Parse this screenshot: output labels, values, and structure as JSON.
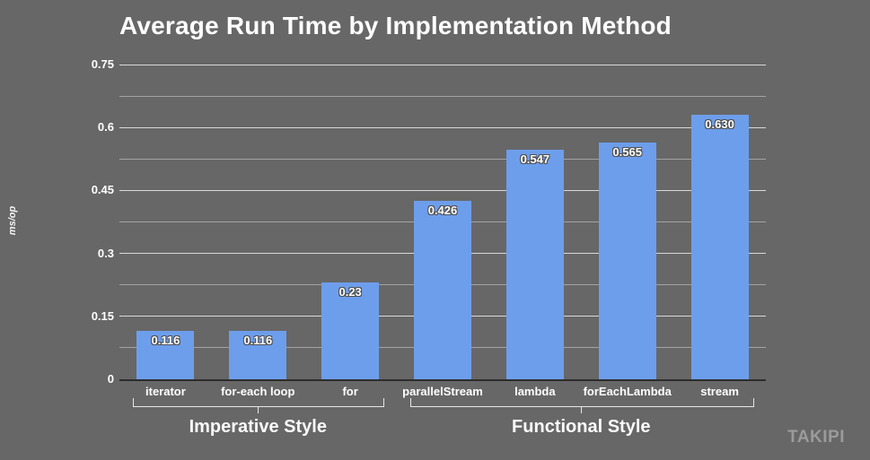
{
  "slide": {
    "background_color": "#676767",
    "logo": "TAKIPI",
    "logo_color": "#9b9b9b"
  },
  "chart_data": {
    "type": "bar",
    "title": "Average Run Time by Implementation Method",
    "xlabel": "",
    "ylabel": "ms/op",
    "categories": [
      "iterator",
      "for-each loop",
      "for",
      "parallelStream",
      "lambda",
      "forEachLambda",
      "stream"
    ],
    "values": [
      0.116,
      0.116,
      0.23,
      0.426,
      0.547,
      0.565,
      0.63
    ],
    "value_labels": [
      "0.116",
      "0.116",
      "0.23",
      "0.426",
      "0.547",
      "0.565",
      "0.630"
    ],
    "ylim": [
      0,
      0.75
    ],
    "yticks": [
      "0",
      "0.15",
      "0.3",
      "0.45",
      "0.6",
      "0.75"
    ],
    "ytick_step_major": 0.15,
    "ytick_step_minor": 0.075,
    "grid": true,
    "legend": "none",
    "bar_color": "#6d9eeb",
    "groups": [
      {
        "label": "Imperative Style",
        "from": 0,
        "to": 2
      },
      {
        "label": "Functional Style",
        "from": 3,
        "to": 6
      }
    ]
  }
}
